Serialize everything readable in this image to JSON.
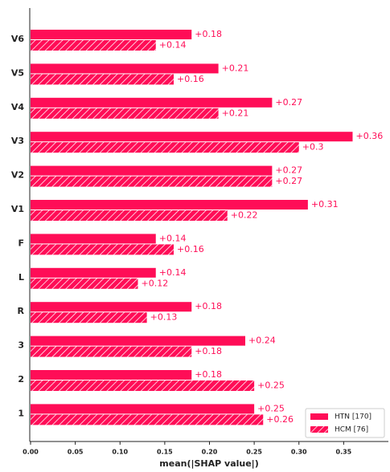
{
  "chart_data": {
    "type": "barh",
    "xlabel": "mean(|SHAP value|)",
    "categories": [
      "V6",
      "V5",
      "V4",
      "V3",
      "V2",
      "V1",
      "F",
      "L",
      "R",
      "3",
      "2",
      "1"
    ],
    "series": [
      {
        "name": "HTN [170]",
        "color": "#ff0d57",
        "hatch": false,
        "values": [
          0.18,
          0.21,
          0.27,
          0.36,
          0.27,
          0.31,
          0.14,
          0.14,
          0.18,
          0.24,
          0.18,
          0.25
        ],
        "value_labels": [
          "+0.18",
          "+0.21",
          "+0.27",
          "+0.36",
          "+0.27",
          "+0.31",
          "+0.14",
          "+0.14",
          "+0.18",
          "+0.24",
          "+0.18",
          "+0.25"
        ]
      },
      {
        "name": "HCM [76]",
        "color": "#ff0d57",
        "hatch": true,
        "values": [
          0.14,
          0.16,
          0.21,
          0.3,
          0.27,
          0.22,
          0.16,
          0.12,
          0.13,
          0.18,
          0.25,
          0.26
        ],
        "value_labels": [
          "+0.14",
          "+0.16",
          "+0.21",
          "+0.3",
          "+0.27",
          "+0.22",
          "+0.16",
          "+0.12",
          "+0.13",
          "+0.18",
          "+0.25",
          "+0.26"
        ]
      }
    ],
    "xlim": [
      0,
      0.4
    ],
    "xticks": [
      {
        "value": 0,
        "label": "0.00"
      },
      0.05,
      {
        "value": 0.1,
        "label": "0.10"
      },
      0.15,
      {
        "value": 0.2,
        "label": "0.20"
      },
      0.25,
      {
        "value": 0.3,
        "label": "0.30"
      },
      0.35
    ],
    "legend": "lower right"
  }
}
